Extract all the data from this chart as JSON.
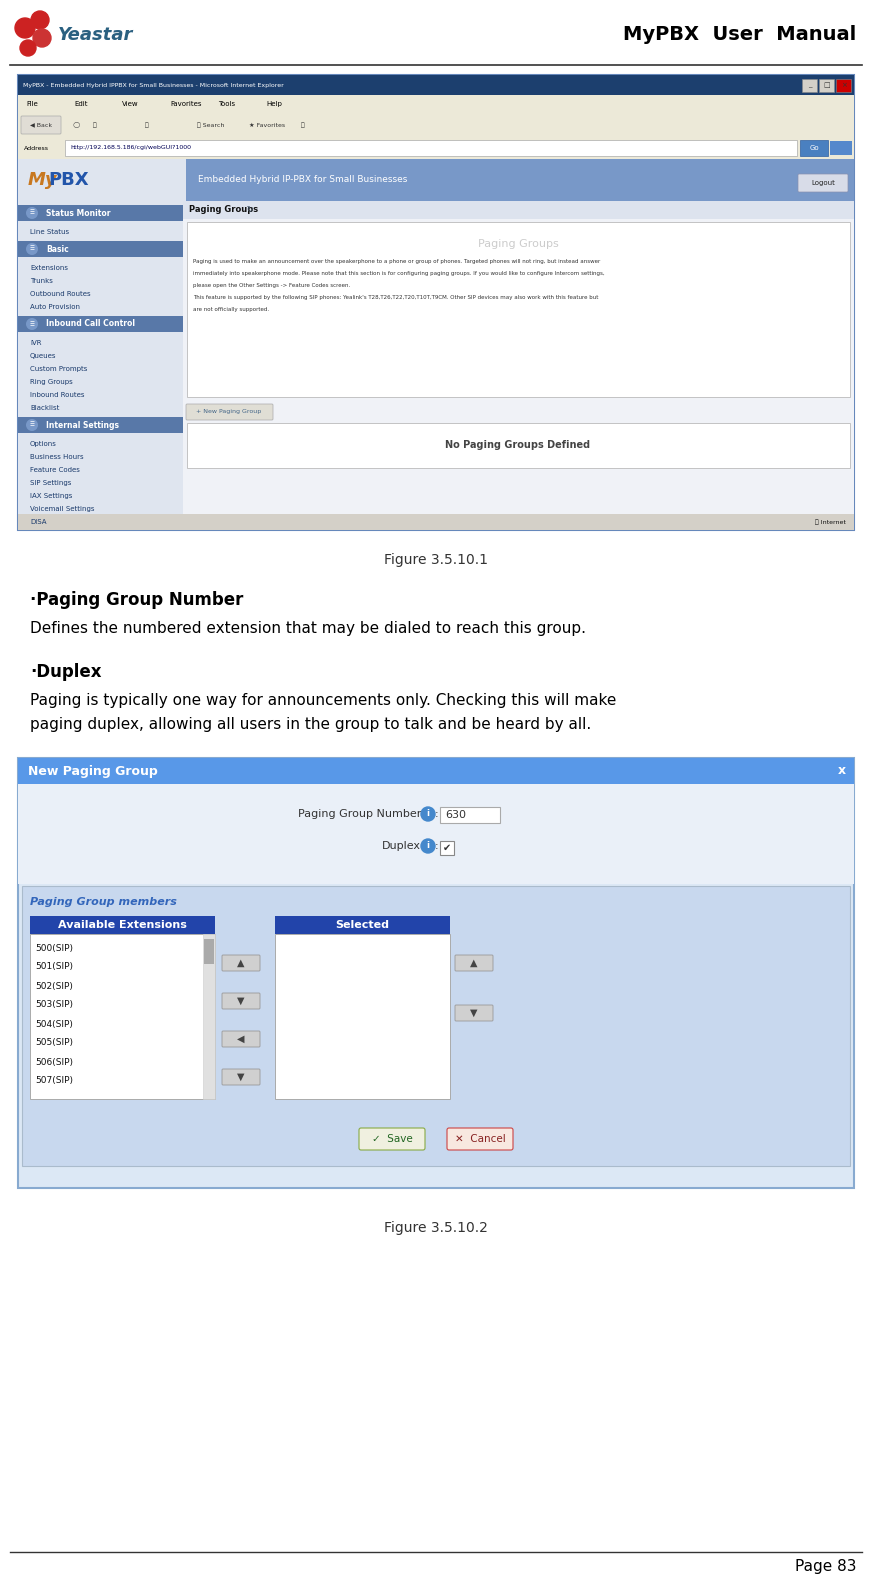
{
  "page_width": 8.72,
  "page_height": 15.81,
  "bg_color": "#ffffff",
  "header_title": "MyPBX  User  Manual",
  "footer_text": "Page 83",
  "fig1_caption": "Figure 3.5.10.1",
  "fig2_caption": "Figure 3.5.10.2",
  "bullet1_title": "·Paging Group Number",
  "bullet1_body": "Defines the numbered extension that may be dialed to reach this group.",
  "bullet2_title": "·Duplex",
  "bullet2_body_line1": "Paging is typically one way for announcements only. Checking this will make",
  "bullet2_body_line2": "paging duplex, allowing all users in the group to talk and be heard by all.",
  "browser_title": "MyPBX - Embedded Hybrid IPPBX for Small Businesses - Microsoft Internet Explorer",
  "browser_url": "http://192.168.5.186/cgi/webGUI?1000",
  "mypbx_subtitle": "Embedded Hybrid IP-PBX for Small Businesses",
  "sidebar_items": [
    "Status Monitor",
    "Line Status",
    "",
    "Basic",
    "Extensions",
    "Trunks",
    "Outbound Routes",
    "Auto Provision",
    "",
    "Inbound Call Control",
    "IVR",
    "Queues",
    "Custom Prompts",
    "Ring Groups",
    "Inbound Routes",
    "Blacklist",
    "",
    "Internal Settings",
    "Options",
    "Business Hours",
    "Feature Codes",
    "SIP Settings",
    "IAX Settings",
    "Voicemail Settings",
    "DISA"
  ],
  "section_headers": [
    "Status Monitor",
    "Basic",
    "Inbound Call Control",
    "Internal Settings"
  ],
  "main_content_title": "Paging Groups",
  "main_content_desc": "Paging Groups",
  "main_body_lines": [
    "Paging is used to make an announcement over the speakerphone to a phone or group of phones. Targeted phones will not ring, but instead answer",
    "immediately into speakerphone mode. Please note that this section is for configuring paging groups. If you would like to configure Intercom settings,",
    "please open the Other Settings -> Feature Codes screen.",
    "This feature is supported by the following SIP phones: Yealink's T28,T26,T22,T20,T10T,T9CM. Other SIP devices may also work with this feature but",
    "are not officially supported."
  ],
  "no_groups_text": "No Paging Groups Defined",
  "new_paging_btn": "+ New Paging Group",
  "fig2_title": "New Paging Group",
  "fig2_paging_label": "Paging Group Number",
  "fig2_paging_value": "630",
  "fig2_duplex_label": "Duplex",
  "fig2_members_label": "Paging Group members",
  "fig2_avail_label": "Available Extensions",
  "fig2_selected_label": "Selected",
  "fig2_extensions": [
    "500(SIP)",
    "501(SIP)",
    "502(SIP)",
    "503(SIP)",
    "504(SIP)",
    "505(SIP)",
    "506(SIP)",
    "507(SIP)"
  ],
  "fig2_save_btn": "Save",
  "fig2_cancel_btn": "Cancel",
  "color_browser_titlebar": "#1c3f6e",
  "color_browser_menubar": "#ece9d8",
  "color_mypbx_sidebar_bg": "#dfe5ef",
  "color_mypbx_header_bg": "#7898c8",
  "color_mypbx_logo_bg": "#dfe5ef",
  "color_sidebar_section_bg": "#5878a8",
  "color_content_bg": "#f0f2f7",
  "color_status_bar": "#d4d0c8",
  "color_fig2_bg": "#dce8f5",
  "color_fig2_titlebar": "#5898e8",
  "color_fig2_members_bg": "#c8d8ee",
  "color_fig2_avail_header": "#2244aa",
  "color_fig2_members_label": "#3366bb"
}
